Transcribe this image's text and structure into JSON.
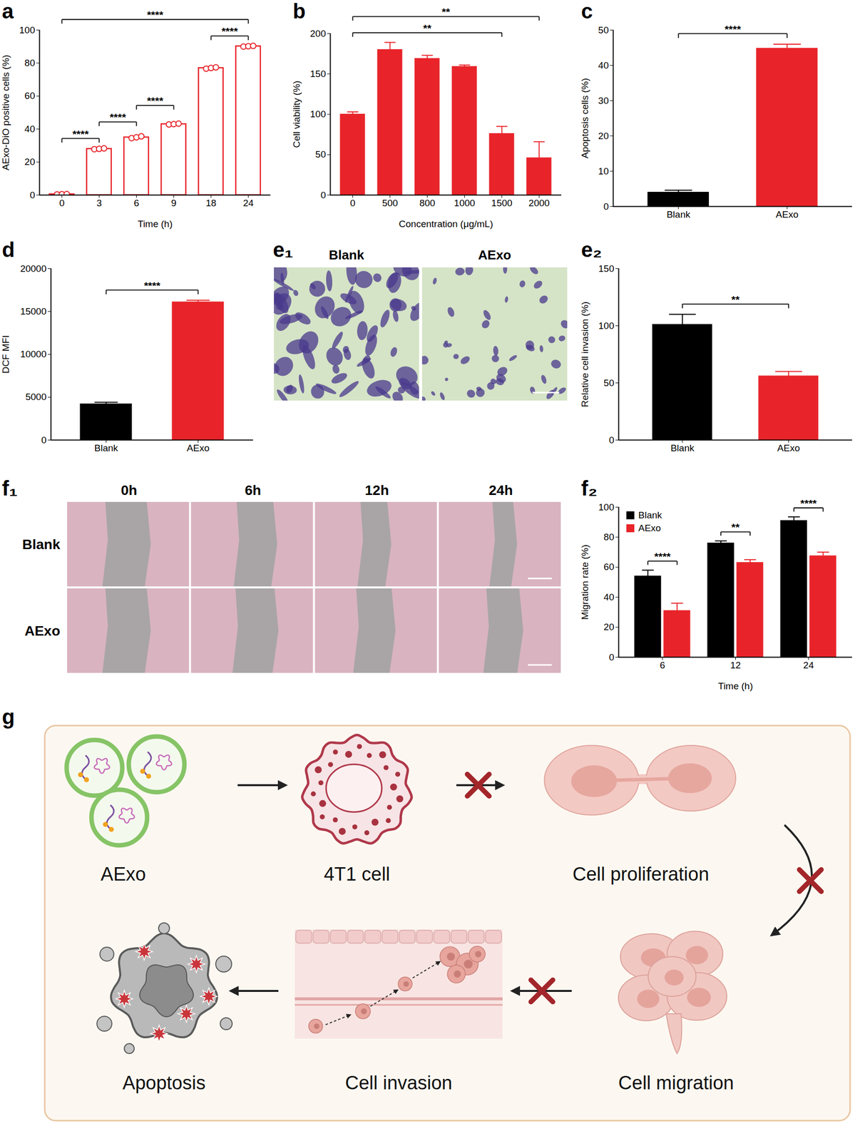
{
  "chart_data": [
    {
      "panel": "a",
      "type": "bar",
      "x_label": "Time (h)",
      "y_label": "AExo-DiO positive cells (%)",
      "categories": [
        "0",
        "3",
        "6",
        "9",
        "18",
        "24"
      ],
      "values": [
        0.5,
        28,
        35,
        43,
        77,
        90.2
      ],
      "replicates": [
        [
          0.4,
          0.5,
          0.6
        ],
        [
          27.8,
          28,
          28.3
        ],
        [
          34.5,
          35,
          35.6
        ],
        [
          42.8,
          43,
          43.3
        ],
        [
          76.6,
          77,
          77.4
        ],
        [
          90,
          90.2,
          90.4
        ]
      ],
      "color": "#e8242a",
      "marker": "circle",
      "ylim": [
        0,
        100
      ],
      "yticks": [
        0,
        20,
        40,
        60,
        80,
        100
      ],
      "annotations": [
        {
          "from": "0",
          "to": "3",
          "label": "****"
        },
        {
          "from": "3",
          "to": "6",
          "label": "****"
        },
        {
          "from": "6",
          "to": "9",
          "label": "****"
        },
        {
          "from": "18",
          "to": "24",
          "label": "****"
        },
        {
          "from": "0",
          "to": "24",
          "label": "****"
        }
      ]
    },
    {
      "panel": "b",
      "type": "bar",
      "x_label": "Concentration (μg/mL)",
      "y_label": "Cell viability (%)",
      "categories": [
        "0",
        "500",
        "800",
        "1000",
        "1500",
        "2000"
      ],
      "values": [
        100,
        180,
        169,
        159,
        76,
        46
      ],
      "errors": [
        3,
        9,
        4,
        2,
        9,
        20
      ],
      "color": "#e8242a",
      "ylim": [
        0,
        200
      ],
      "yticks": [
        0,
        50,
        100,
        150,
        200
      ],
      "annotations": [
        {
          "from": "0",
          "to": "1500",
          "label": "**"
        },
        {
          "from": "0",
          "to": "2000",
          "label": "**"
        }
      ]
    },
    {
      "panel": "c",
      "type": "bar",
      "y_label": "Apoptosis cells (%)",
      "categories": [
        "Blank",
        "AExo"
      ],
      "values": [
        4,
        44.8
      ],
      "errors": [
        0.6,
        1.2
      ],
      "colors": [
        "#000000",
        "#e8242a"
      ],
      "ylim": [
        0,
        50
      ],
      "yticks": [
        0,
        10,
        20,
        30,
        40,
        50
      ],
      "annotations": [
        {
          "from": "Blank",
          "to": "AExo",
          "label": "****"
        }
      ]
    },
    {
      "panel": "d",
      "type": "bar",
      "y_label": "DCF MFI",
      "categories": [
        "Blank",
        "AExo"
      ],
      "values": [
        4200,
        16100
      ],
      "errors": [
        200,
        200
      ],
      "colors": [
        "#000000",
        "#e8242a"
      ],
      "ylim": [
        0,
        20000
      ],
      "yticks": [
        0,
        5000,
        10000,
        15000,
        20000
      ],
      "annotations": [
        {
          "from": "Blank",
          "to": "AExo",
          "label": "****"
        }
      ]
    },
    {
      "panel": "e₂",
      "type": "bar",
      "y_label": "Relative cell invasion (%)",
      "categories": [
        "Blank",
        "AExo"
      ],
      "values": [
        101,
        56
      ],
      "errors": [
        9,
        4
      ],
      "colors": [
        "#000000",
        "#e8242a"
      ],
      "ylim": [
        0,
        150
      ],
      "yticks": [
        0,
        50,
        100,
        150
      ],
      "annotations": [
        {
          "from": "Blank",
          "to": "AExo",
          "label": "**"
        }
      ]
    },
    {
      "panel": "f₂",
      "type": "bar",
      "x_label": "Time (h)",
      "y_label": "Migration rate (%)",
      "categories": [
        "6",
        "12",
        "24"
      ],
      "series": [
        {
          "name": "Blank",
          "color": "#000000",
          "values": [
            54,
            76,
            91
          ],
          "errors": [
            4,
            1.5,
            2.5
          ]
        },
        {
          "name": "AExo",
          "color": "#e8242a",
          "values": [
            31,
            63,
            67.5
          ],
          "errors": [
            5,
            2,
            2.5
          ]
        }
      ],
      "legend": "top-left",
      "ylim": [
        0,
        100
      ],
      "yticks": [
        0,
        20,
        40,
        60,
        80,
        100
      ],
      "annotations": [
        {
          "category": "6",
          "label": "****"
        },
        {
          "category": "12",
          "label": "**"
        },
        {
          "category": "24",
          "label": "****"
        }
      ]
    }
  ],
  "images": [
    {
      "panel": "e₁",
      "titles": [
        "Blank",
        "AExo"
      ]
    },
    {
      "panel": "f₁",
      "columns": [
        "0h",
        "6h",
        "12h",
        "24h"
      ],
      "rows": [
        "Blank",
        "AExo"
      ]
    }
  ],
  "diagram": {
    "panel": "g",
    "nodes": [
      "AExo",
      "4T1 cell",
      "Cell proliferation",
      "Cell migration",
      "Cell invasion",
      "Apoptosis"
    ],
    "edges": [
      {
        "from": 0,
        "to": 1,
        "blocked": false
      },
      {
        "from": 1,
        "to": 2,
        "blocked": true
      },
      {
        "from": 2,
        "to": 3,
        "blocked": true
      },
      {
        "from": 3,
        "to": 4,
        "blocked": true
      },
      {
        "from": 4,
        "to": 5,
        "blocked": false
      }
    ]
  }
}
